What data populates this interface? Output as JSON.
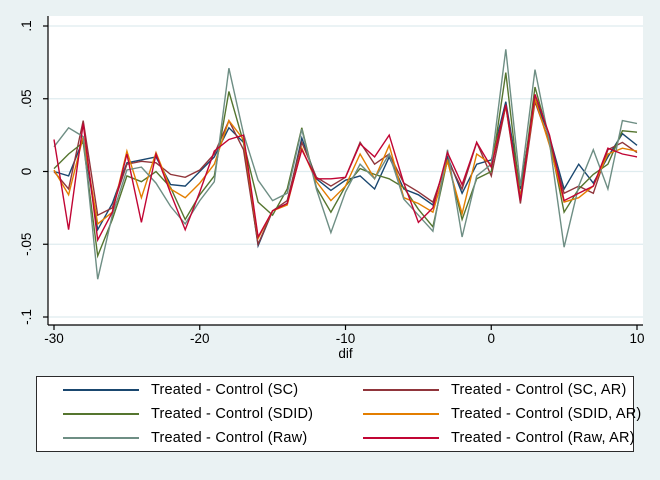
{
  "figure": {
    "background": "#eaf2f3",
    "plot_background": "#ffffff",
    "grid_color": "#dfecef",
    "axis_color": "#000000",
    "text_color": "#000000"
  },
  "chart_data": {
    "type": "line",
    "title": "",
    "xlabel": "dif",
    "ylabel": "",
    "xlim": [
      -30,
      10
    ],
    "ylim": [
      -0.1,
      0.1
    ],
    "grid": true,
    "legend_position": "bottom",
    "x_ticks": [
      {
        "value": -30,
        "label": "-30"
      },
      {
        "value": -20,
        "label": "-20"
      },
      {
        "value": -10,
        "label": "-10"
      },
      {
        "value": 0,
        "label": "0"
      },
      {
        "value": 10,
        "label": "10"
      }
    ],
    "y_ticks": [
      {
        "value": 0.1,
        "label": ".1"
      },
      {
        "value": 0.05,
        "label": ".05"
      },
      {
        "value": 0,
        "label": "0"
      },
      {
        "value": -0.05,
        "label": "-.05"
      },
      {
        "value": -0.1,
        "label": "-.1"
      }
    ],
    "x": [
      -30,
      -29,
      -28,
      -27,
      -26,
      -25,
      -24,
      -23,
      -22,
      -21,
      -20,
      -19,
      -18,
      -17,
      -16,
      -15,
      -14,
      -13,
      -12,
      -11,
      -10,
      -9,
      -8,
      -7,
      -6,
      -5,
      -4,
      -3,
      -2,
      -1,
      0,
      1,
      2,
      3,
      4,
      5,
      6,
      7,
      8,
      9,
      10
    ],
    "series": [
      {
        "key": "sc",
        "label": "Treated - Control (SC)",
        "color": "#1a476f",
        "values": [
          0,
          -0.003,
          0.022,
          -0.04,
          -0.022,
          0.006,
          0.008,
          0.01,
          -0.009,
          -0.01,
          0,
          0.01,
          0.03,
          0.02,
          -0.051,
          -0.027,
          -0.022,
          0.023,
          -0.005,
          -0.013,
          -0.006,
          -0.003,
          -0.012,
          0.01,
          -0.012,
          -0.016,
          -0.023,
          0.01,
          -0.015,
          0.005,
          0.008,
          0.048,
          -0.012,
          0.05,
          0.024,
          -0.012,
          0.005,
          -0.008,
          0.01,
          0.026,
          0.018
        ]
      },
      {
        "key": "sc_ar",
        "label": "Treated - Control (SC, AR)",
        "color": "#90353b",
        "values": [
          0,
          -0.012,
          0.035,
          -0.03,
          -0.025,
          0.005,
          0.007,
          0.006,
          -0.002,
          -0.004,
          0.001,
          0.012,
          0.035,
          0.015,
          -0.05,
          -0.027,
          -0.02,
          0.02,
          -0.004,
          -0.01,
          -0.004,
          0.02,
          0.005,
          0.012,
          -0.008,
          -0.014,
          -0.021,
          0.008,
          -0.012,
          0.02,
          -0.003,
          0.045,
          -0.022,
          0.048,
          0.02,
          -0.015,
          -0.01,
          -0.015,
          0.015,
          0.02,
          0.013
        ]
      },
      {
        "key": "sdid",
        "label": "Treated - Control (SDID)",
        "color": "#55752f",
        "values": [
          0.002,
          0.012,
          0.02,
          -0.058,
          -0.033,
          -0.003,
          -0.007,
          0,
          -0.011,
          -0.033,
          -0.016,
          -0.003,
          0.055,
          0.02,
          -0.021,
          -0.03,
          -0.012,
          0.03,
          -0.011,
          -0.028,
          -0.01,
          0.002,
          -0.002,
          -0.005,
          -0.011,
          -0.026,
          -0.038,
          0.008,
          -0.033,
          -0.005,
          0,
          0.068,
          -0.018,
          0.058,
          0.022,
          -0.028,
          -0.012,
          -0.002,
          0.005,
          0.028,
          0.027
        ]
      },
      {
        "key": "sdid_ar",
        "label": "Treated - Control (SDID, AR)",
        "color": "#e37e00",
        "values": [
          0.001,
          -0.016,
          0.024,
          -0.036,
          -0.028,
          0.014,
          -0.018,
          0.013,
          -0.012,
          -0.018,
          -0.008,
          0.005,
          0.035,
          0.022,
          -0.046,
          -0.027,
          -0.023,
          0.016,
          -0.007,
          -0.02,
          -0.01,
          0.012,
          -0.005,
          0.018,
          -0.018,
          -0.022,
          -0.028,
          0.007,
          -0.029,
          0.012,
          0.005,
          0.045,
          -0.018,
          0.05,
          0.018,
          -0.021,
          -0.018,
          -0.01,
          0.012,
          0.016,
          0.014
        ]
      },
      {
        "key": "raw",
        "label": "Treated - Control (Raw)",
        "color": "#6e8e84",
        "values": [
          0.017,
          0.03,
          0.024,
          -0.074,
          -0.03,
          0.001,
          0.003,
          -0.008,
          -0.024,
          -0.036,
          -0.02,
          -0.007,
          0.071,
          0.026,
          -0.006,
          -0.02,
          -0.015,
          0.029,
          -0.012,
          -0.042,
          -0.014,
          0.005,
          -0.005,
          0.012,
          -0.019,
          -0.03,
          -0.041,
          0.015,
          -0.045,
          -0.003,
          0.005,
          0.084,
          -0.01,
          0.07,
          0.02,
          -0.052,
          -0.01,
          0.015,
          -0.012,
          0.035,
          0.033
        ]
      },
      {
        "key": "raw_ar",
        "label": "Treated - Control (Raw, AR)",
        "color": "#c10534",
        "values": [
          0.022,
          -0.04,
          0.033,
          -0.047,
          -0.028,
          0.012,
          -0.035,
          0.012,
          -0.015,
          -0.04,
          -0.014,
          0.014,
          0.022,
          0.025,
          -0.045,
          -0.027,
          -0.022,
          0.015,
          -0.005,
          -0.005,
          -0.004,
          0.019,
          0.01,
          0.025,
          -0.008,
          -0.035,
          -0.025,
          0.013,
          -0.009,
          0.02,
          0.003,
          0.046,
          -0.02,
          0.053,
          0.025,
          -0.02,
          -0.015,
          -0.01,
          0.016,
          0.012,
          0.01
        ]
      }
    ]
  }
}
